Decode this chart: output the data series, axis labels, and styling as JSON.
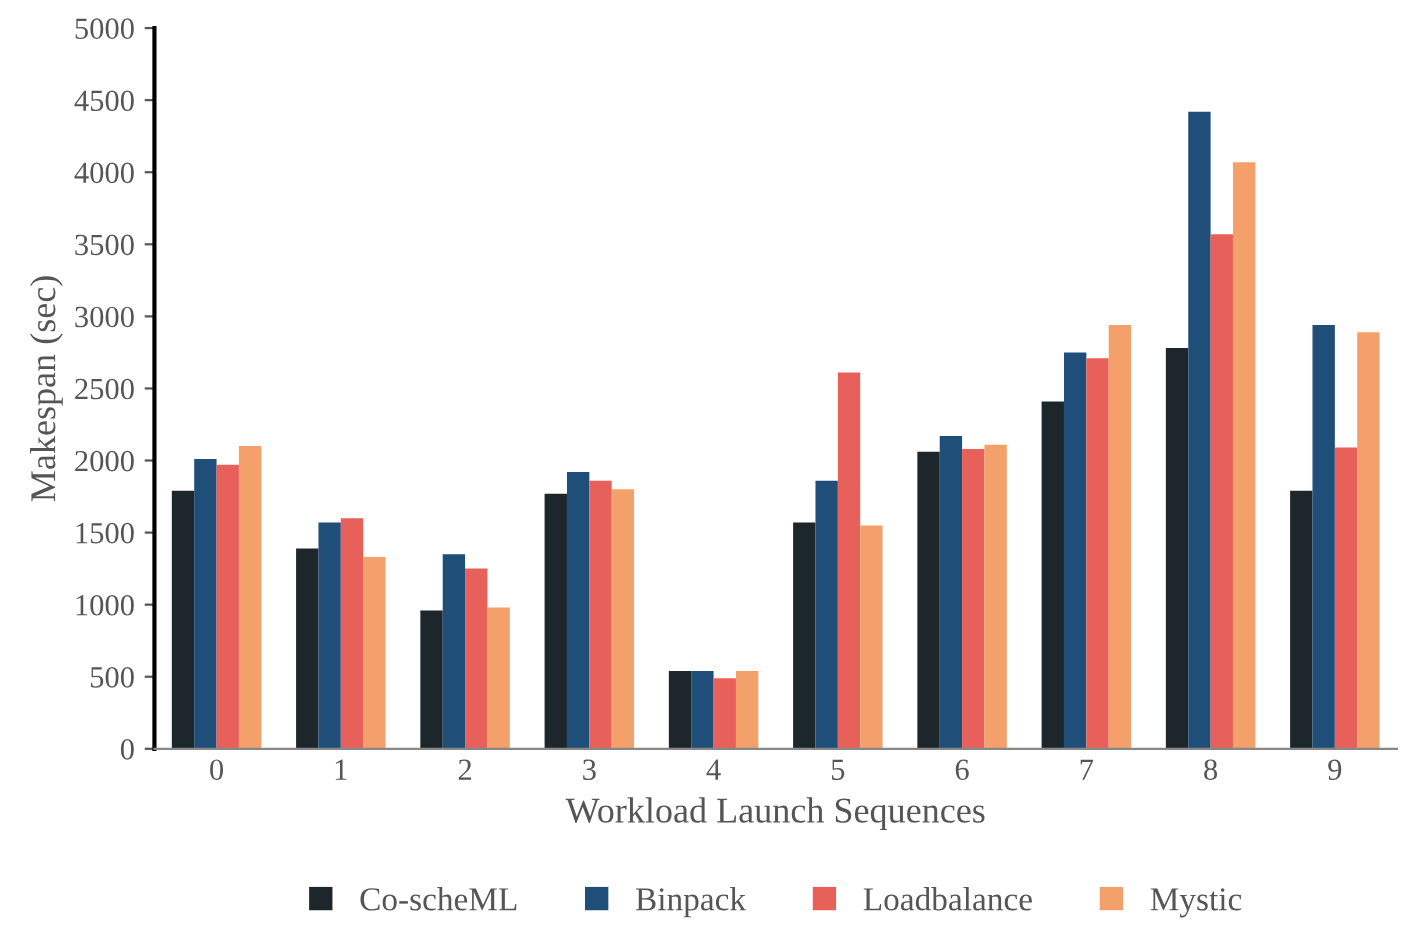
{
  "chart_data": {
    "type": "bar",
    "xlabel": "Workload Launch Sequences",
    "ylabel": "Makespan (sec)",
    "categories": [
      "0",
      "1",
      "2",
      "3",
      "4",
      "5",
      "6",
      "7",
      "8",
      "9"
    ],
    "series": [
      {
        "name": "Co-scheML",
        "color": "#1c262b",
        "values": [
          1790,
          1390,
          960,
          1770,
          540,
          1570,
          2060,
          2410,
          2780,
          1790
        ]
      },
      {
        "name": "Binpack",
        "color": "#1f4e79",
        "values": [
          2010,
          1570,
          1350,
          1920,
          540,
          1860,
          2170,
          2750,
          4420,
          2940
        ]
      },
      {
        "name": "Loadbalance",
        "color": "#e8605a",
        "values": [
          1970,
          1600,
          1250,
          1860,
          490,
          2610,
          2080,
          2710,
          3570,
          2090
        ]
      },
      {
        "name": "Mystic",
        "color": "#f4a06a",
        "values": [
          2100,
          1330,
          980,
          1800,
          540,
          1550,
          2110,
          2940,
          4070,
          2890
        ]
      }
    ],
    "ylim": [
      0,
      5000
    ],
    "yticks": [
      0,
      500,
      1000,
      1500,
      2000,
      2500,
      3000,
      3500,
      4000,
      4500,
      5000
    ],
    "grid": false,
    "legend": "bottom"
  }
}
